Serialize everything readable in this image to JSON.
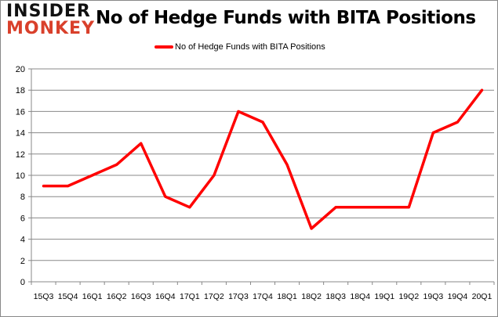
{
  "logo": {
    "line1": "INSIDER",
    "line2": "MONKEY"
  },
  "chart_data": {
    "type": "line",
    "title": "No of Hedge Funds with BITA Positions",
    "xlabel": "",
    "ylabel": "",
    "categories": [
      "15Q3",
      "15Q4",
      "16Q1",
      "16Q2",
      "16Q3",
      "16Q4",
      "17Q1",
      "17Q2",
      "17Q3",
      "17Q4",
      "18Q1",
      "18Q2",
      "18Q3",
      "18Q4",
      "19Q1",
      "19Q2",
      "19Q3",
      "19Q4",
      "20Q1"
    ],
    "series": [
      {
        "name": "No of Hedge Funds with BITA Positions",
        "color": "#ff0000",
        "values": [
          9,
          9,
          10,
          11,
          13,
          8,
          7,
          10,
          16,
          15,
          11,
          5,
          7,
          7,
          7,
          7,
          14,
          15,
          18
        ]
      }
    ],
    "ylim": [
      0,
      20
    ],
    "yticks": [
      0,
      2,
      4,
      6,
      8,
      10,
      12,
      14,
      16,
      18,
      20
    ],
    "grid": true,
    "legend": "top-center"
  }
}
